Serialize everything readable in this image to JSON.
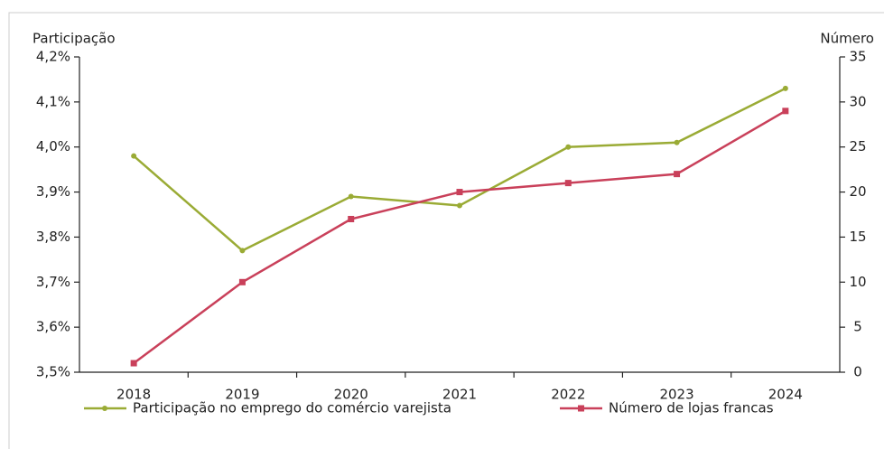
{
  "chart_data": {
    "type": "line",
    "y_label": "Participação",
    "y2_label": "Número",
    "categories": [
      "2018",
      "2019",
      "2020",
      "2021",
      "2022",
      "2023",
      "2024"
    ],
    "series": [
      {
        "name": "Participação no emprego do comércio varejista",
        "color": "#9aab35",
        "values": [
          3.98,
          3.77,
          3.89,
          3.87,
          4.0,
          4.01,
          4.13
        ]
      },
      {
        "name": "Número de lojas francas",
        "color": "#c9405a",
        "axis": "y2",
        "values": [
          1,
          10,
          17,
          20,
          21,
          22,
          29
        ]
      }
    ],
    "ylim": [
      3.5,
      4.2
    ],
    "yticks": [
      {
        "value": 3.5,
        "label": "3,5%"
      },
      {
        "value": 3.6,
        "label": "3,6%"
      },
      {
        "value": 3.7,
        "label": "3,7%"
      },
      {
        "value": 3.8,
        "label": "3,8%"
      },
      {
        "value": 3.9,
        "label": "3,9%"
      },
      {
        "value": 4.0,
        "label": "4,0%"
      },
      {
        "value": 4.1,
        "label": "4,1%"
      },
      {
        "value": 4.2,
        "label": "4,2%"
      }
    ],
    "y2lim": [
      0,
      35
    ],
    "y2ticks": [
      0,
      5,
      10,
      15,
      20,
      25,
      30,
      35
    ],
    "grid": false,
    "legend": "bottom"
  }
}
